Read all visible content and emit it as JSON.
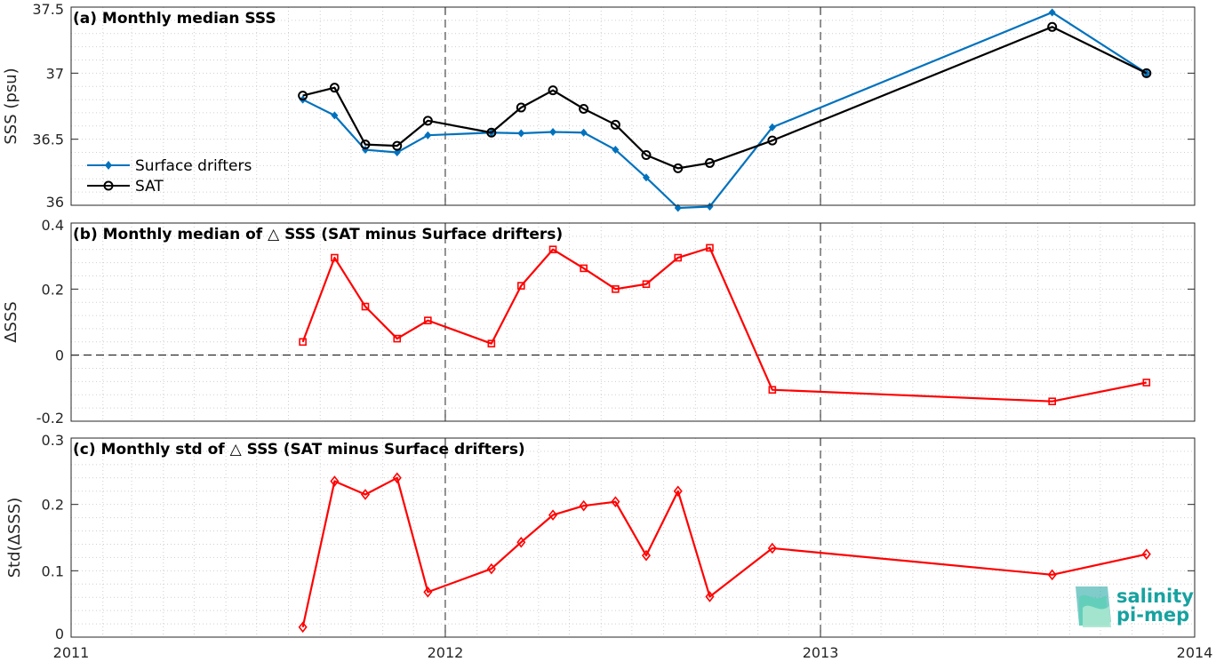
{
  "chart_data": [
    {
      "type": "line",
      "title": "(a) Monthly median SSS",
      "ylabel": "SSS (psu)",
      "xlabel": "",
      "xlim": [
        "2011-01-01",
        "2014-01-01"
      ],
      "x_ticks": [
        "2011",
        "2012",
        "2013",
        "2014"
      ],
      "ylim": [
        36.0,
        37.5
      ],
      "y_ticks": [
        "36",
        "36.5",
        "37",
        "37.5"
      ],
      "grid": "dotted, minor",
      "legend_placement": "center-left",
      "x": [
        "2011-08-15",
        "2011-09-15",
        "2011-10-15",
        "2011-11-15",
        "2011-12-15",
        "2012-02-15",
        "2012-03-15",
        "2012-04-15",
        "2012-05-15",
        "2012-06-15",
        "2012-07-15",
        "2012-08-15",
        "2012-09-15",
        "2012-11-15",
        "2013-08-15",
        "2013-11-15"
      ],
      "series": [
        {
          "name": "Surface drifters",
          "color": "#0072bd",
          "marker": "filled-diamond",
          "values": [
            36.8,
            36.68,
            36.42,
            36.4,
            36.53,
            36.55,
            36.545,
            36.555,
            36.55,
            36.42,
            36.21,
            35.98,
            35.99,
            36.59,
            37.46,
            37.0
          ]
        },
        {
          "name": "SAT",
          "color": "#000000",
          "marker": "open-circle",
          "values": [
            36.83,
            36.89,
            36.46,
            36.45,
            36.64,
            36.55,
            36.74,
            36.87,
            36.73,
            36.61,
            36.38,
            36.28,
            36.32,
            36.49,
            37.35,
            37.0
          ]
        }
      ]
    },
    {
      "type": "line",
      "title": "(b) Monthly median of △ SSS (SAT minus Surface drifters)",
      "ylabel": "ΔSSS",
      "xlabel": "",
      "xlim": [
        "2011-01-01",
        "2014-01-01"
      ],
      "x_ticks": [
        "2011",
        "2012",
        "2013",
        "2014"
      ],
      "ylim": [
        -0.2,
        0.4
      ],
      "y_ticks": [
        "-0.2",
        "0",
        "0.2",
        "0.4"
      ],
      "zero_line": "dashed",
      "x": [
        "2011-08-15",
        "2011-09-15",
        "2011-10-15",
        "2011-11-15",
        "2011-12-15",
        "2012-02-15",
        "2012-03-15",
        "2012-04-15",
        "2012-05-15",
        "2012-06-15",
        "2012-07-15",
        "2012-08-15",
        "2012-09-15",
        "2012-11-15",
        "2013-08-15",
        "2013-11-15"
      ],
      "series": [
        {
          "color": "#ff0000",
          "marker": "open-square",
          "values": [
            0.04,
            0.295,
            0.147,
            0.05,
            0.105,
            0.035,
            0.21,
            0.32,
            0.263,
            0.2,
            0.215,
            0.295,
            0.325,
            -0.105,
            -0.14,
            -0.083
          ]
        }
      ]
    },
    {
      "type": "line",
      "title": "(c) Monthly std of △ SSS (SAT minus Surface drifters)",
      "ylabel": "Std(ΔSSS)",
      "xlabel": "",
      "xlim": [
        "2011-01-01",
        "2014-01-01"
      ],
      "x_ticks": [
        "2011",
        "2012",
        "2013",
        "2014"
      ],
      "ylim": [
        0,
        0.3
      ],
      "y_ticks": [
        "0",
        "0.1",
        "0.2",
        "0.3"
      ],
      "x": [
        "2011-08-15",
        "2011-09-15",
        "2011-10-15",
        "2011-11-15",
        "2011-12-15",
        "2012-02-15",
        "2012-03-15",
        "2012-04-15",
        "2012-05-15",
        "2012-06-15",
        "2012-07-15",
        "2012-08-15",
        "2012-09-15",
        "2012-11-15",
        "2013-08-15",
        "2013-11-15"
      ],
      "series": [
        {
          "color": "#ff0000",
          "marker": "open-diamond",
          "values": [
            0.015,
            0.235,
            0.215,
            0.24,
            0.068,
            0.103,
            0.143,
            0.184,
            0.198,
            0.204,
            0.123,
            0.22,
            0.061,
            0.134,
            0.094,
            0.125
          ]
        }
      ]
    }
  ],
  "logo": {
    "line1": "salinity",
    "line2": "pi-mep",
    "color": "#17a2a0"
  }
}
